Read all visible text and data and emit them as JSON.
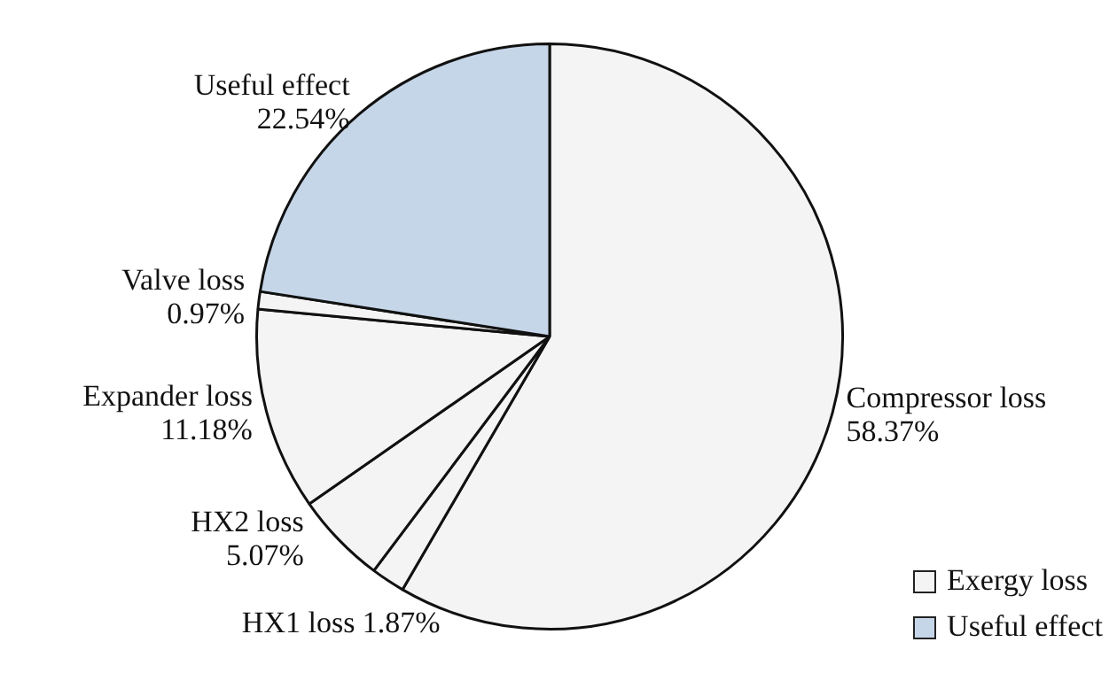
{
  "chart_data": {
    "type": "pie",
    "categories": [
      "Compressor loss",
      "HX1 loss",
      "HX2 loss",
      "Expander loss",
      "Valve loss",
      "Useful effect"
    ],
    "values": [
      58.37,
      1.87,
      5.07,
      11.18,
      0.97,
      22.54
    ],
    "colors": [
      "#f4f4f4",
      "#f4f4f4",
      "#f4f4f4",
      "#f4f4f4",
      "#f4f4f4",
      "#c6d6e9"
    ],
    "value_labels": [
      "58.37%",
      "1.87%",
      "5.07%",
      "11.18%",
      "0.97%",
      "22.54%"
    ],
    "annotations": [
      "Exergy loss",
      "Useful effect"
    ]
  }
}
